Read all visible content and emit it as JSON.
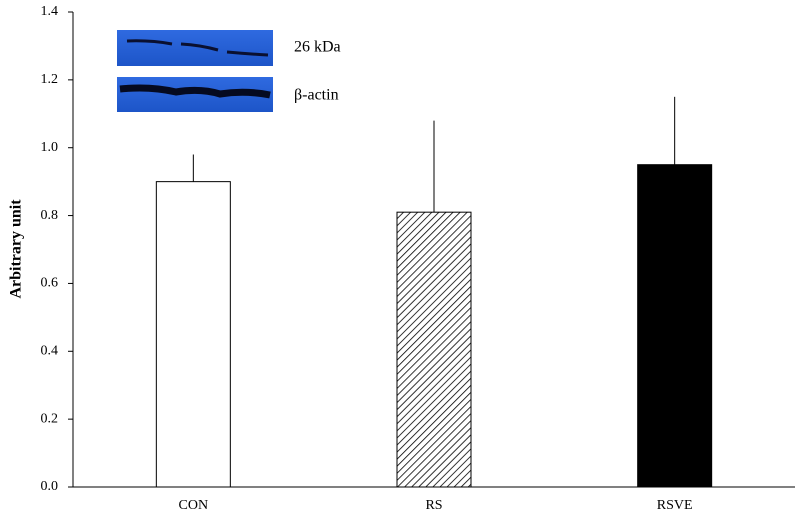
{
  "chart_data": {
    "type": "bar",
    "ylabel": "Arbitrary unit",
    "categories": [
      "CON",
      "RS",
      "RSVE"
    ],
    "values": [
      0.9,
      0.81,
      0.95
    ],
    "errors": [
      0.08,
      0.27,
      0.2
    ],
    "bar_styles": [
      {
        "fill": "#ffffff"
      },
      {
        "fill": "#ffffff",
        "hatch": "#000000"
      },
      {
        "fill": "#000000"
      }
    ],
    "ylim": [
      0,
      1.4
    ],
    "yticks": [
      {
        "value": 0,
        "label": "0.0"
      },
      0.2,
      0.4,
      0.6,
      0.8,
      {
        "value": 1,
        "label": "1.0"
      },
      1.2,
      1.4
    ],
    "inset_labels": [
      "26 kDa",
      "β-actin"
    ]
  }
}
